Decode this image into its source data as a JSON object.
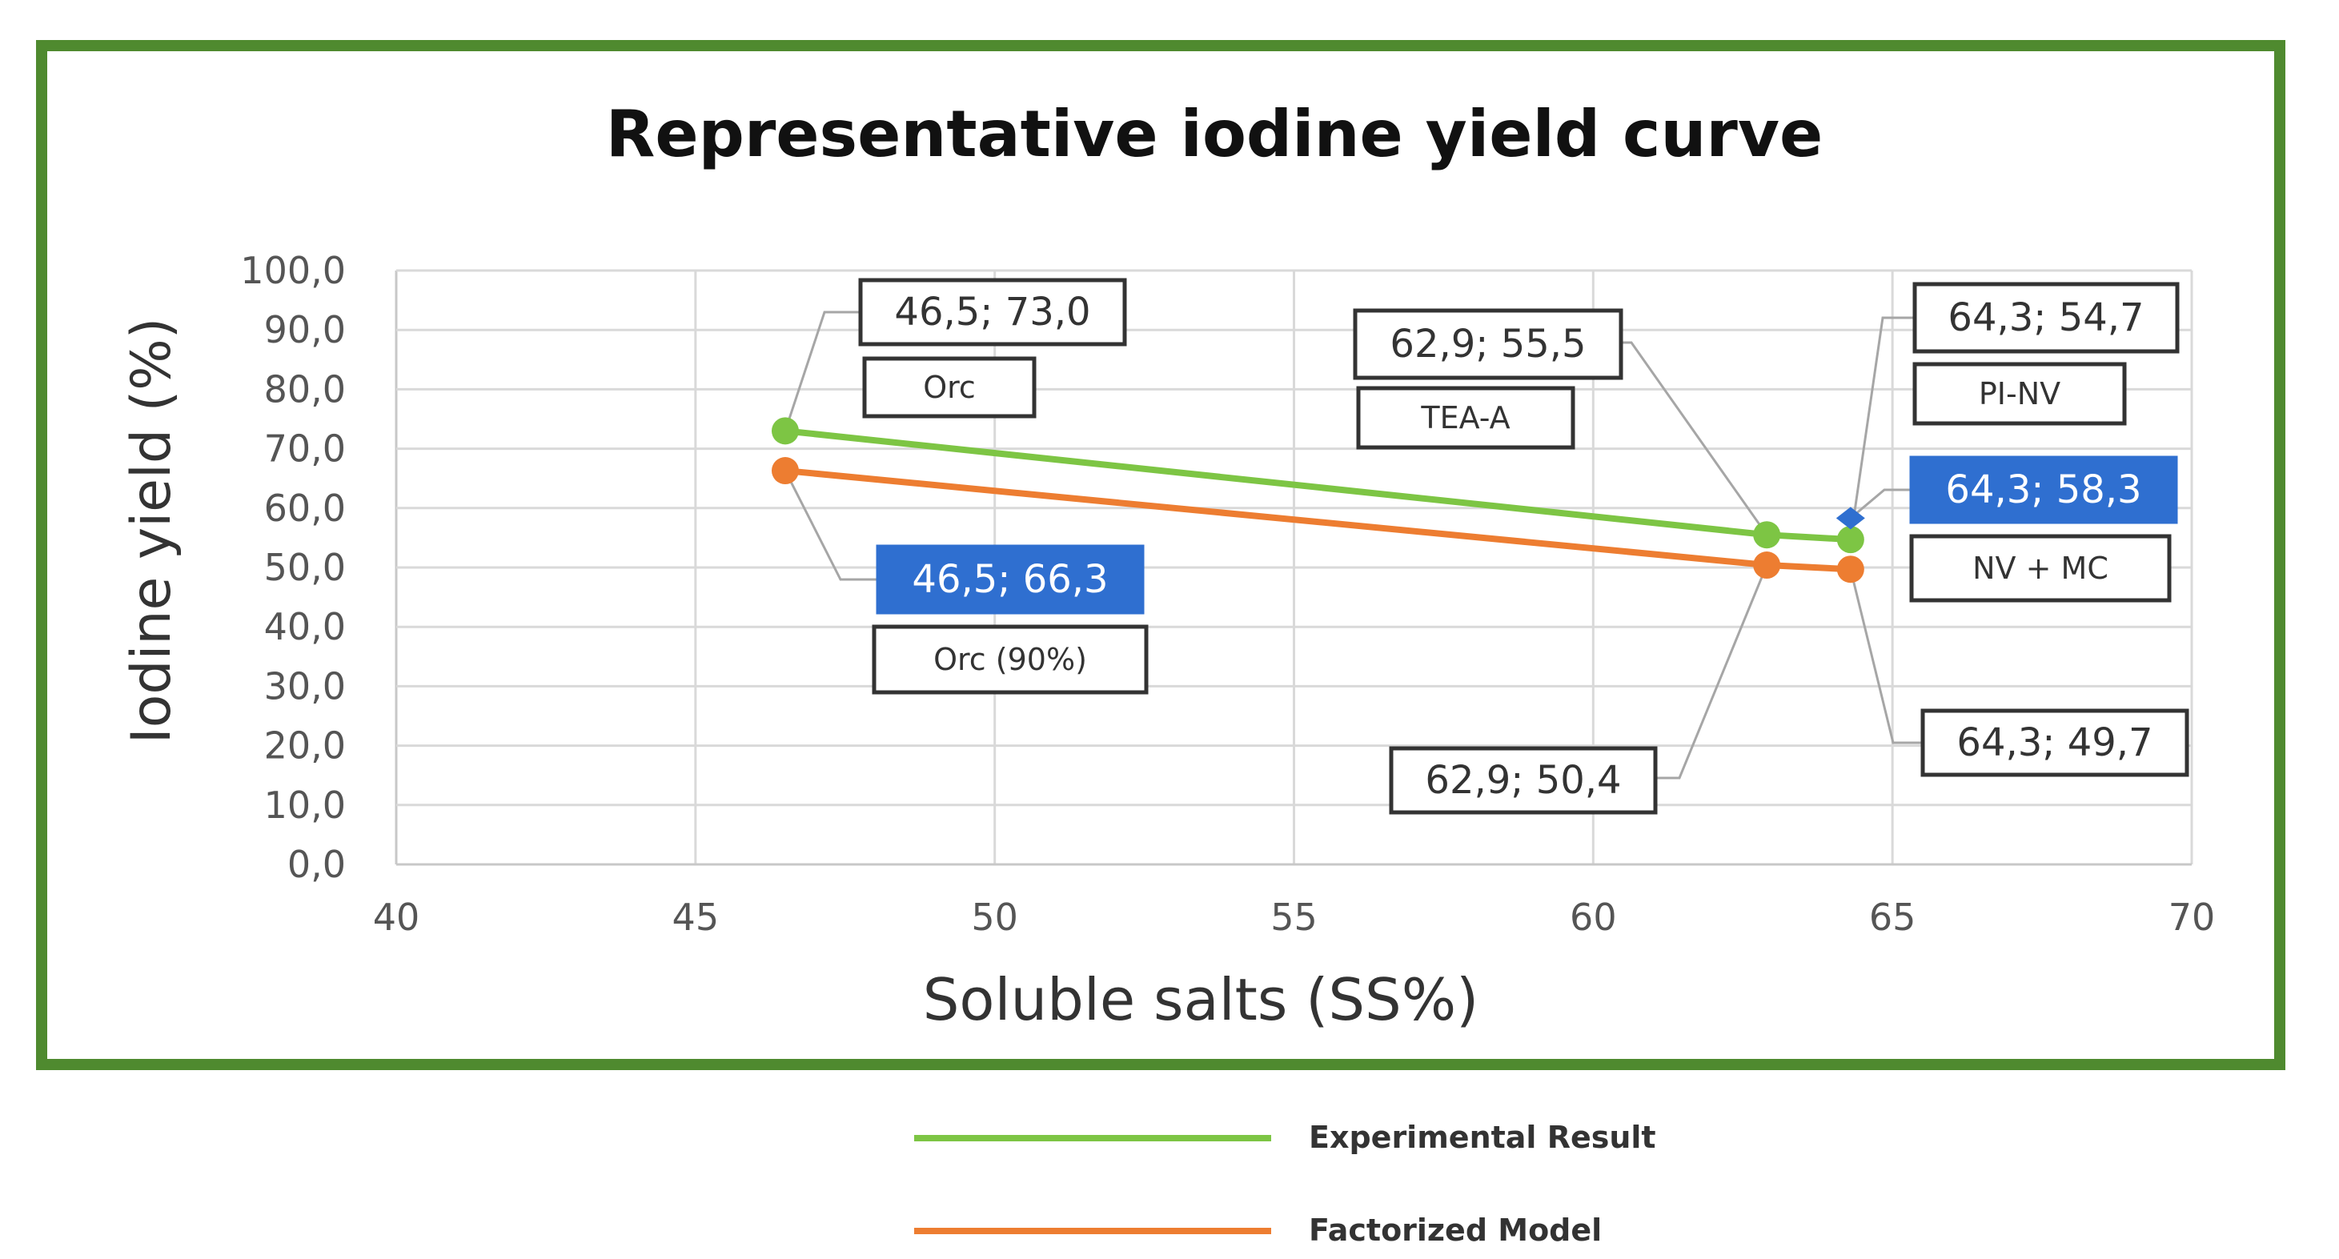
{
  "colors": {
    "frame": "#4f8a2f",
    "experimental": "#7dc544",
    "model": "#ed7d31",
    "highlight": "#2f6fd0",
    "grid": "#d9d9d9"
  },
  "chart_data": {
    "type": "line",
    "title": "Representative iodine yield curve",
    "xlabel": "Soluble salts (SS%)",
    "ylabel": "Iodine yield (%)",
    "xlim": [
      40,
      70
    ],
    "ylim": [
      0,
      100
    ],
    "x_ticks": [
      "40",
      "45",
      "50",
      "55",
      "60",
      "65",
      "70"
    ],
    "y_ticks": [
      "0,0",
      "10,0",
      "20,0",
      "30,0",
      "40,0",
      "50,0",
      "60,0",
      "70,0",
      "80,0",
      "90,0",
      "100,0"
    ],
    "grid": true,
    "legend_position": "bottom",
    "series": [
      {
        "name": "Experimental Result",
        "color": "#7dc544",
        "x": [
          46.5,
          62.9,
          64.3
        ],
        "y": [
          73.0,
          55.5,
          54.7
        ]
      },
      {
        "name": "Factorized Model",
        "color": "#ed7d31",
        "x": [
          46.5,
          62.9,
          64.3
        ],
        "y": [
          66.3,
          50.4,
          49.7
        ]
      }
    ],
    "extra_points": [
      {
        "x": 64.3,
        "y": 58.3,
        "color": "#2f6fd0"
      }
    ],
    "annotations": [
      {
        "value": "46,5; 73,0",
        "label": "Orc",
        "highlight": false
      },
      {
        "value": "46,5; 66,3",
        "label": "Orc (90%)",
        "highlight": true
      },
      {
        "value": "62,9; 55,5",
        "label": "TEA-A",
        "highlight": false
      },
      {
        "value": "62,9; 50,4",
        "label": "",
        "highlight": false
      },
      {
        "value": "64,3; 54,7",
        "label": "PI-NV",
        "highlight": false
      },
      {
        "value": "64,3; 58,3",
        "label": "NV + MC",
        "highlight": true
      },
      {
        "value": "64,3; 49,7",
        "label": "",
        "highlight": false
      }
    ]
  }
}
